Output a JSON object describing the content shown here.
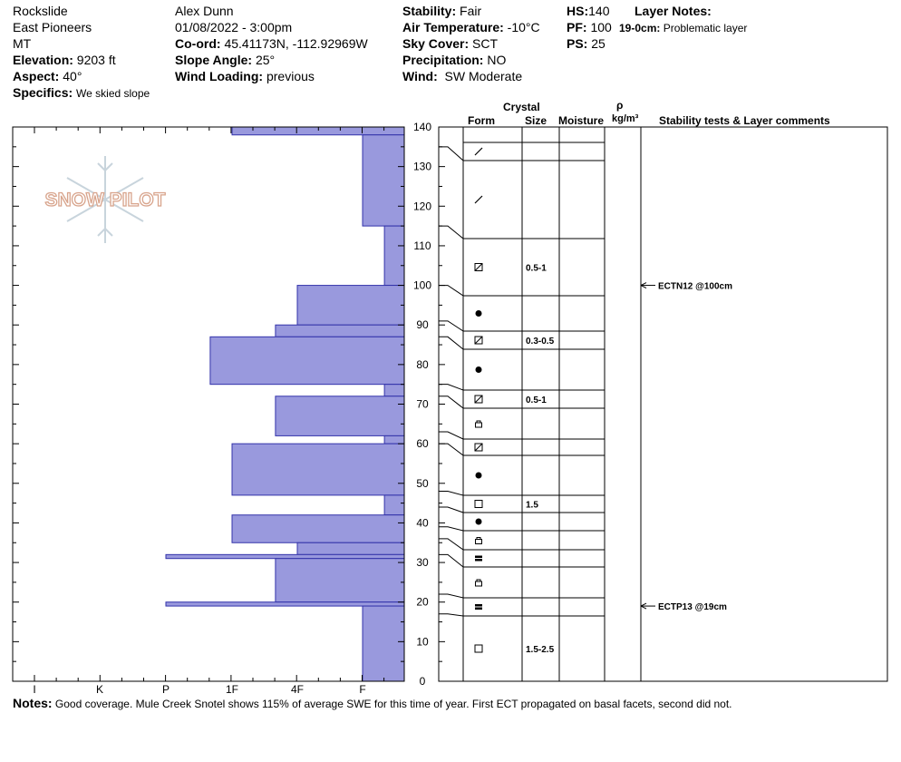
{
  "header": {
    "location": "Rockslide",
    "range": "East Pioneers",
    "state": "MT",
    "elevation_label": "Elevation:",
    "elevation": "9203 ft",
    "aspect_label": "Aspect:",
    "aspect": "40°",
    "specifics_label": "Specifics:",
    "specifics": "We skied slope",
    "observer": "Alex Dunn",
    "datetime": "01/08/2022 - 3:00pm",
    "coord_label": "Co-ord:",
    "coord": "45.41173N, -112.92969W",
    "slope_label": "Slope Angle:",
    "slope": "25°",
    "wind_loading_label": "Wind Loading:",
    "wind_loading": "previous",
    "stability_label": "Stability:",
    "stability": "Fair",
    "air_temp_label": "Air Temperature:",
    "air_temp": "-10°C",
    "sky_label": "Sky Cover:",
    "sky": "SCT",
    "precip_label": "Precipitation:",
    "precip": "NO",
    "wind_label": "Wind:",
    "wind": "SW Moderate",
    "hs_label": "HS:",
    "hs": "140",
    "pf_label": "PF:",
    "pf": "100",
    "ps_label": "PS:",
    "ps": "25",
    "layer_notes_label": "Layer Notes:",
    "layer_note_depth": "19-0cm:",
    "layer_note": "Problematic layer"
  },
  "columns": {
    "crystal": "Crystal",
    "form": "Form",
    "size": "Size",
    "moisture": "Moisture",
    "rho": "ρ",
    "density_unit": "kg/m³",
    "stability": "Stability tests & Layer comments"
  },
  "logo_text": "SNOW PILOT",
  "notes_label": "Notes:",
  "notes": "Good coverage. Mule Creek Snotel shows 115% of average SWE for this time of year. First ECT propagated on basal facets, second did not.",
  "colors": {
    "bar_fill": "#9999dd",
    "bar_stroke": "#3333aa",
    "logo": "#d8a48c"
  },
  "chart_data": {
    "type": "bar",
    "orientation": "horizontal",
    "title": "",
    "xlabel": "",
    "ylabel": "",
    "hardness_ticks": [
      "I",
      "K",
      "P",
      "1F",
      "4F",
      "F"
    ],
    "height_ticks": [
      0,
      10,
      20,
      30,
      40,
      50,
      60,
      70,
      80,
      90,
      100,
      110,
      120,
      130,
      140
    ],
    "ylim": [
      0,
      140
    ],
    "hardness_profile": [
      {
        "top": 140,
        "bottom": 138,
        "hardness": "1F"
      },
      {
        "top": 138,
        "bottom": 115,
        "hardness": "F"
      },
      {
        "top": 115,
        "bottom": 100,
        "hardness": "F+"
      },
      {
        "top": 100,
        "bottom": 90,
        "hardness": "4F"
      },
      {
        "top": 90,
        "bottom": 87,
        "hardness": "4F-"
      },
      {
        "top": 87,
        "bottom": 75,
        "hardness": "1F-"
      },
      {
        "top": 75,
        "bottom": 72,
        "hardness": "F+"
      },
      {
        "top": 72,
        "bottom": 62,
        "hardness": "4F-"
      },
      {
        "top": 62,
        "bottom": 60,
        "hardness": "F+"
      },
      {
        "top": 60,
        "bottom": 47,
        "hardness": "1F"
      },
      {
        "top": 47,
        "bottom": 42,
        "hardness": "F+"
      },
      {
        "top": 42,
        "bottom": 35,
        "hardness": "1F"
      },
      {
        "top": 35,
        "bottom": 32,
        "hardness": "4F"
      },
      {
        "top": 32,
        "bottom": 31,
        "hardness": "P"
      },
      {
        "top": 31,
        "bottom": 20,
        "hardness": "4F-"
      },
      {
        "top": 20,
        "bottom": 19,
        "hardness": "P"
      },
      {
        "top": 19,
        "bottom": 0,
        "hardness": "F"
      }
    ],
    "layers": [
      {
        "top": 140,
        "bottom": 135,
        "form": "DF",
        "size": ""
      },
      {
        "top": 135,
        "bottom": 115,
        "form": "DF",
        "size": ""
      },
      {
        "top": 115,
        "bottom": 100,
        "form": "FC",
        "size": "0.5-1"
      },
      {
        "top": 100,
        "bottom": 91,
        "form": "RG",
        "size": ""
      },
      {
        "top": 91,
        "bottom": 87,
        "form": "FC",
        "size": "0.3-0.5"
      },
      {
        "top": 87,
        "bottom": 75,
        "form": "RG",
        "size": ""
      },
      {
        "top": 75,
        "bottom": 72,
        "form": "FC",
        "size": "0.5-1"
      },
      {
        "top": 72,
        "bottom": 63,
        "form": "MF",
        "size": ""
      },
      {
        "top": 63,
        "bottom": 60,
        "form": "FC",
        "size": ""
      },
      {
        "top": 60,
        "bottom": 48,
        "form": "RG",
        "size": ""
      },
      {
        "top": 48,
        "bottom": 44,
        "form": "FCsq",
        "size": "1.5"
      },
      {
        "top": 44,
        "bottom": 39,
        "form": "RG",
        "size": ""
      },
      {
        "top": 39,
        "bottom": 36,
        "form": "MF",
        "size": ""
      },
      {
        "top": 36,
        "bottom": 32,
        "form": "IF",
        "size": ""
      },
      {
        "top": 32,
        "bottom": 22,
        "form": "MF",
        "size": ""
      },
      {
        "top": 22,
        "bottom": 17,
        "form": "IF",
        "size": ""
      },
      {
        "top": 17,
        "bottom": 0,
        "form": "FCsq",
        "size": "1.5-2.5"
      }
    ],
    "stability_tests": [
      {
        "depth": 100,
        "label": "ECTN12 @100cm"
      },
      {
        "depth": 19,
        "label": "ECTP13 @19cm"
      }
    ]
  }
}
